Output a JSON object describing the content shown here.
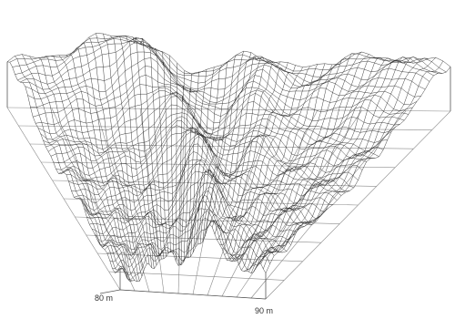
{
  "diagram": {
    "type": "3d-wireframe-terrain",
    "scale_labels": {
      "depth": "80 m",
      "width": "90 m"
    },
    "colors": {
      "mesh": "#2a2a2a",
      "floor_grid": "#8a8a8a",
      "frame": "#555555",
      "background": "#ffffff"
    }
  }
}
